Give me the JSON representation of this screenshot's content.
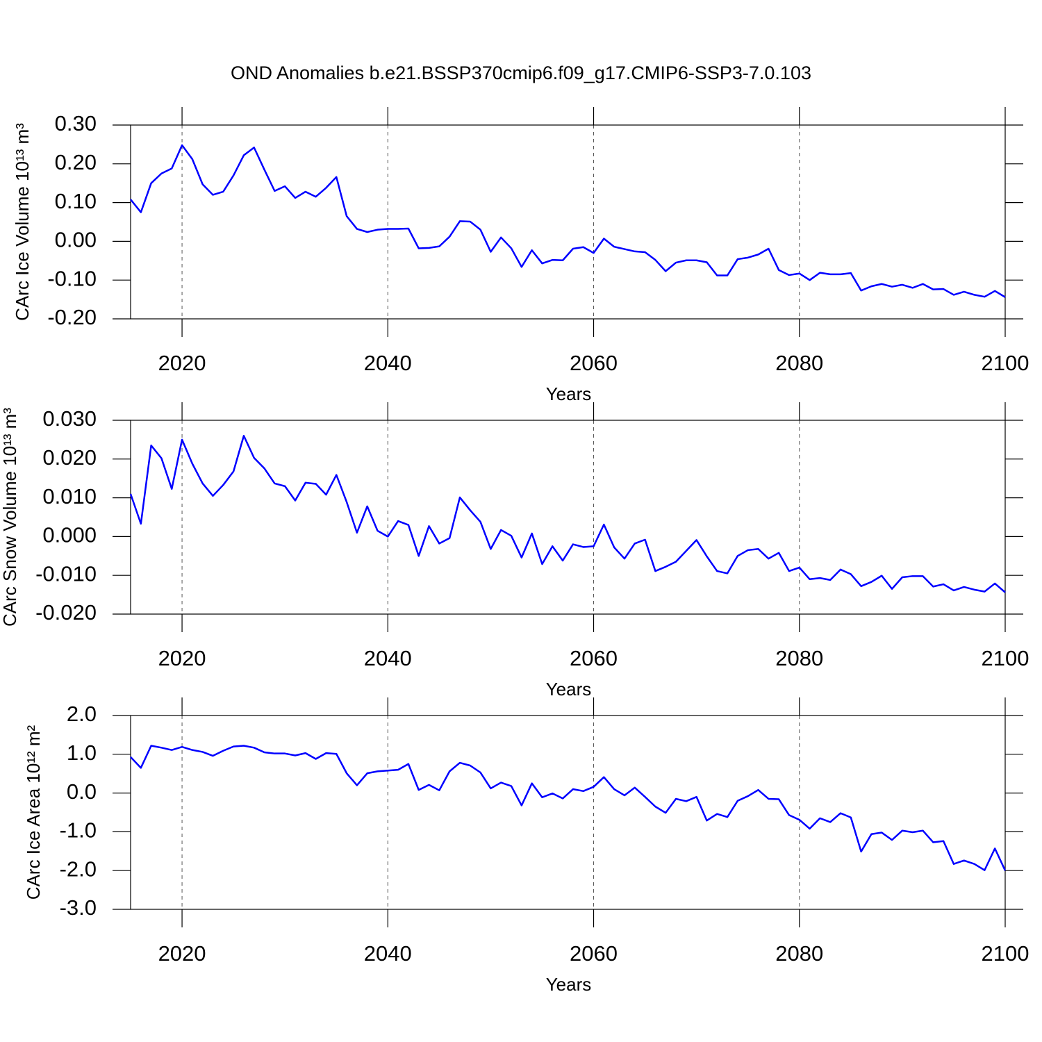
{
  "chart_data": [
    {
      "type": "line",
      "title": "OND Anomalies b.e21.BSSP370cmip6.f09_g17.CMIP6-SSP3-7.0.103",
      "xlabel": "Years",
      "ylabel": "CArc Ice Volume 10¹³ m³",
      "x": [
        2015,
        2016,
        2017,
        2018,
        2019,
        2020,
        2021,
        2022,
        2023,
        2024,
        2025,
        2026,
        2027,
        2028,
        2029,
        2030,
        2031,
        2032,
        2033,
        2034,
        2035,
        2036,
        2037,
        2038,
        2039,
        2040,
        2041,
        2042,
        2043,
        2044,
        2045,
        2046,
        2047,
        2048,
        2049,
        2050,
        2051,
        2052,
        2053,
        2054,
        2055,
        2056,
        2057,
        2058,
        2059,
        2060,
        2061,
        2062,
        2063,
        2064,
        2065,
        2066,
        2067,
        2068,
        2069,
        2070,
        2071,
        2072,
        2073,
        2074,
        2075,
        2076,
        2077,
        2078,
        2079,
        2080,
        2081,
        2082,
        2083,
        2084,
        2085,
        2086,
        2087,
        2088,
        2089,
        2090,
        2091,
        2092,
        2093,
        2094,
        2095,
        2096,
        2097,
        2098,
        2099,
        2100
      ],
      "values": [
        0.108,
        0.075,
        0.15,
        0.175,
        0.188,
        0.248,
        0.212,
        0.147,
        0.12,
        0.128,
        0.17,
        0.222,
        0.242,
        0.185,
        0.13,
        0.142,
        0.112,
        0.128,
        0.115,
        0.138,
        0.166,
        0.065,
        0.032,
        0.024,
        0.03,
        0.032,
        0.032,
        0.033,
        -0.018,
        -0.017,
        -0.013,
        0.012,
        0.052,
        0.051,
        0.03,
        -0.027,
        0.01,
        -0.018,
        -0.066,
        -0.023,
        -0.057,
        -0.048,
        -0.049,
        -0.019,
        -0.015,
        -0.03,
        0.007,
        -0.014,
        -0.02,
        -0.026,
        -0.028,
        -0.048,
        -0.077,
        -0.055,
        -0.049,
        -0.049,
        -0.054,
        -0.088,
        -0.088,
        -0.046,
        -0.042,
        -0.034,
        -0.019,
        -0.074,
        -0.087,
        -0.083,
        -0.1,
        -0.081,
        -0.085,
        -0.085,
        -0.082,
        -0.127,
        -0.116,
        -0.11,
        -0.117,
        -0.112,
        -0.12,
        -0.11,
        -0.124,
        -0.123,
        -0.138,
        -0.13,
        -0.138,
        -0.143,
        -0.128,
        -0.144
      ],
      "color": "#0000ff",
      "xlim": [
        2015,
        2100
      ],
      "xticks": [
        2020,
        2040,
        2060,
        2080,
        2100
      ],
      "ylim": [
        -0.2,
        0.3
      ],
      "yticks": [
        {
          "value": -0.2,
          "label": "-0.20"
        },
        {
          "value": -0.1,
          "label": "-0.10"
        },
        {
          "value": 0,
          "label": "0.00"
        },
        {
          "value": 0.1,
          "label": "0.10"
        },
        {
          "value": 0.2,
          "label": "0.20"
        },
        {
          "value": 0.3,
          "label": "0.30"
        }
      ],
      "grid": true
    },
    {
      "type": "line",
      "xlabel": "Years",
      "ylabel": "CArc Snow Volume 10¹³ m³",
      "x": [
        2015,
        2016,
        2017,
        2018,
        2019,
        2020,
        2021,
        2022,
        2023,
        2024,
        2025,
        2026,
        2027,
        2028,
        2029,
        2030,
        2031,
        2032,
        2033,
        2034,
        2035,
        2036,
        2037,
        2038,
        2039,
        2040,
        2041,
        2042,
        2043,
        2044,
        2045,
        2046,
        2047,
        2048,
        2049,
        2050,
        2051,
        2052,
        2053,
        2054,
        2055,
        2056,
        2057,
        2058,
        2059,
        2060,
        2061,
        2062,
        2063,
        2064,
        2065,
        2066,
        2067,
        2068,
        2069,
        2070,
        2071,
        2072,
        2073,
        2074,
        2075,
        2076,
        2077,
        2078,
        2079,
        2080,
        2081,
        2082,
        2083,
        2084,
        2085,
        2086,
        2087,
        2088,
        2089,
        2090,
        2091,
        2092,
        2093,
        2094,
        2095,
        2096,
        2097,
        2098,
        2099,
        2100
      ],
      "values": [
        0.011,
        0.0033,
        0.0235,
        0.0202,
        0.0123,
        0.025,
        0.0188,
        0.0137,
        0.0105,
        0.0133,
        0.0168,
        0.026,
        0.0203,
        0.0176,
        0.0137,
        0.013,
        0.0093,
        0.0139,
        0.0136,
        0.0108,
        0.0159,
        0.0089,
        0.001,
        0.0078,
        0.0015,
        0.0,
        0.004,
        0.003,
        -0.005,
        0.0027,
        -0.0018,
        -0.0004,
        0.0101,
        0.0068,
        0.0038,
        -0.0032,
        0.0017,
        0.0002,
        -0.0054,
        0.0008,
        -0.0071,
        -0.0025,
        -0.0062,
        -0.002,
        -0.0027,
        -0.0025,
        0.0031,
        -0.0028,
        -0.0057,
        -0.0018,
        -0.0008,
        -0.0089,
        -0.0078,
        -0.0065,
        -0.0037,
        -0.0009,
        -0.0051,
        -0.0089,
        -0.0095,
        -0.005,
        -0.0035,
        -0.0032,
        -0.0057,
        -0.0042,
        -0.0089,
        -0.008,
        -0.011,
        -0.0107,
        -0.0112,
        -0.0085,
        -0.0097,
        -0.0128,
        -0.0117,
        -0.0101,
        -0.0135,
        -0.0105,
        -0.0102,
        -0.0102,
        -0.0129,
        -0.0123,
        -0.0139,
        -0.013,
        -0.0137,
        -0.0142,
        -0.0121,
        -0.0144
      ],
      "color": "#0000ff",
      "xlim": [
        2015,
        2100
      ],
      "xticks": [
        2020,
        2040,
        2060,
        2080,
        2100
      ],
      "ylim": [
        -0.02,
        0.03
      ],
      "yticks": [
        {
          "value": -0.02,
          "label": "-0.020"
        },
        {
          "value": -0.01,
          "label": "-0.010"
        },
        {
          "value": 0,
          "label": "0.000"
        },
        {
          "value": 0.01,
          "label": "0.010"
        },
        {
          "value": 0.02,
          "label": "0.020"
        },
        {
          "value": 0.03,
          "label": "0.030"
        }
      ],
      "grid": true
    },
    {
      "type": "line",
      "xlabel": "Years",
      "ylabel": "CArc Ice Area 10¹² m²",
      "x": [
        2015,
        2016,
        2017,
        2018,
        2019,
        2020,
        2021,
        2022,
        2023,
        2024,
        2025,
        2026,
        2027,
        2028,
        2029,
        2030,
        2031,
        2032,
        2033,
        2034,
        2035,
        2036,
        2037,
        2038,
        2039,
        2040,
        2041,
        2042,
        2043,
        2044,
        2045,
        2046,
        2047,
        2048,
        2049,
        2050,
        2051,
        2052,
        2053,
        2054,
        2055,
        2056,
        2057,
        2058,
        2059,
        2060,
        2061,
        2062,
        2063,
        2064,
        2065,
        2066,
        2067,
        2068,
        2069,
        2070,
        2071,
        2072,
        2073,
        2074,
        2075,
        2076,
        2077,
        2078,
        2079,
        2080,
        2081,
        2082,
        2083,
        2084,
        2085,
        2086,
        2087,
        2088,
        2089,
        2090,
        2091,
        2092,
        2093,
        2094,
        2095,
        2096,
        2097,
        2098,
        2099,
        2100
      ],
      "values": [
        0.93,
        0.65,
        1.22,
        1.17,
        1.11,
        1.19,
        1.11,
        1.06,
        0.96,
        1.09,
        1.2,
        1.22,
        1.17,
        1.05,
        1.02,
        1.02,
        0.97,
        1.03,
        0.88,
        1.03,
        1.01,
        0.51,
        0.2,
        0.51,
        0.56,
        0.58,
        0.6,
        0.75,
        0.08,
        0.21,
        0.07,
        0.56,
        0.78,
        0.71,
        0.53,
        0.12,
        0.27,
        0.18,
        -0.32,
        0.25,
        -0.11,
        -0.01,
        -0.14,
        0.1,
        0.05,
        0.16,
        0.41,
        0.1,
        -0.06,
        0.14,
        -0.1,
        -0.35,
        -0.51,
        -0.15,
        -0.21,
        -0.1,
        -0.71,
        -0.54,
        -0.62,
        -0.2,
        -0.08,
        0.08,
        -0.15,
        -0.16,
        -0.57,
        -0.69,
        -0.92,
        -0.65,
        -0.75,
        -0.52,
        -0.63,
        -1.51,
        -1.06,
        -1.02,
        -1.21,
        -0.97,
        -1.01,
        -0.97,
        -1.27,
        -1.24,
        -1.83,
        -1.74,
        -1.83,
        -1.99,
        -1.43,
        -2.0
      ],
      "color": "#0000ff",
      "xlim": [
        2015,
        2100
      ],
      "xticks": [
        2020,
        2040,
        2060,
        2080,
        2100
      ],
      "ylim": [
        -3,
        2
      ],
      "yticks": [
        {
          "value": -3,
          "label": "-3.0"
        },
        {
          "value": -2,
          "label": "-2.0"
        },
        {
          "value": -1,
          "label": "-1.0"
        },
        {
          "value": 0,
          "label": "0.0"
        },
        {
          "value": 1,
          "label": "1.0"
        },
        {
          "value": 2,
          "label": "2.0"
        }
      ],
      "grid": true
    }
  ]
}
